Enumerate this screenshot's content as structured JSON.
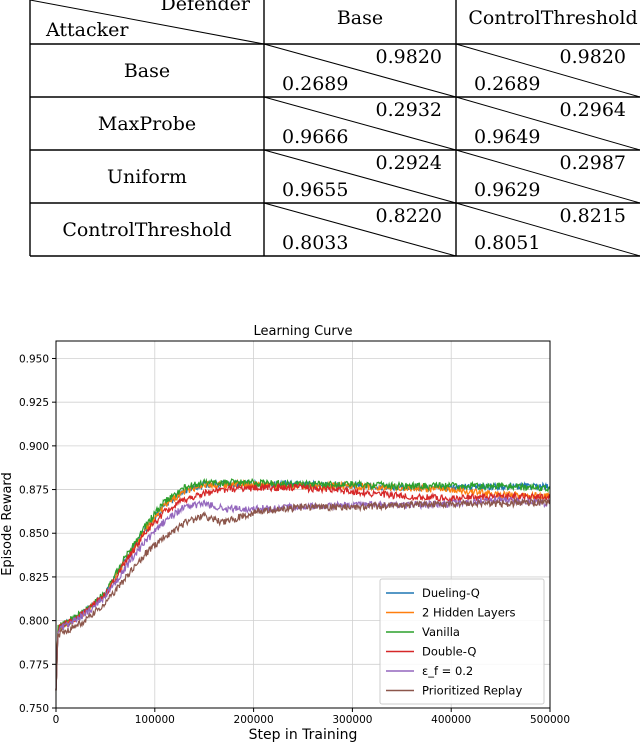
{
  "payoff_table": {
    "corner": {
      "defender": "Defender",
      "attacker": "Attacker"
    },
    "columns": [
      "Base",
      "ControlThreshold"
    ],
    "rows": [
      {
        "label": "Base",
        "cells": [
          {
            "upper": "0.9820",
            "lower": "0.2689"
          },
          {
            "upper": "0.9820",
            "lower": "0.2689"
          }
        ]
      },
      {
        "label": "MaxProbe",
        "cells": [
          {
            "upper": "0.2932",
            "lower": "0.9666"
          },
          {
            "upper": "0.2964",
            "lower": "0.9649"
          }
        ]
      },
      {
        "label": "Uniform",
        "cells": [
          {
            "upper": "0.2924",
            "lower": "0.9655"
          },
          {
            "upper": "0.2987",
            "lower": "0.9629"
          }
        ]
      },
      {
        "label": "ControlThreshold",
        "cells": [
          {
            "upper": "0.8220",
            "lower": "0.8033"
          },
          {
            "upper": "0.8215",
            "lower": "0.8051"
          }
        ]
      }
    ]
  },
  "chart_data": {
    "type": "line",
    "title": "Learning Curve",
    "xlabel": "Step in Training",
    "ylabel": "Episode Reward",
    "xlim": [
      0,
      500000
    ],
    "ylim": [
      0.75,
      0.96
    ],
    "xticks": [
      "0",
      "100000",
      "200000",
      "300000",
      "400000",
      "500000"
    ],
    "yticks": [
      "0.750",
      "0.775",
      "0.800",
      "0.825",
      "0.850",
      "0.875",
      "0.900",
      "0.925",
      "0.950"
    ],
    "grid": true,
    "legend_position": "lower-right",
    "series": [
      {
        "name": "Dueling-Q",
        "color": "#1f77b4",
        "x": [
          0,
          2000,
          10000,
          30000,
          50000,
          70000,
          90000,
          110000,
          130000,
          150000,
          170000,
          200000,
          250000,
          300000,
          350000,
          400000,
          450000,
          500000
        ],
        "y": [
          0.76,
          0.795,
          0.798,
          0.805,
          0.815,
          0.835,
          0.852,
          0.866,
          0.874,
          0.878,
          0.878,
          0.878,
          0.878,
          0.877,
          0.876,
          0.876,
          0.877,
          0.877
        ]
      },
      {
        "name": "2 Hidden Layers",
        "color": "#ff7f0e",
        "x": [
          0,
          2000,
          10000,
          30000,
          50000,
          70000,
          90000,
          110000,
          130000,
          150000,
          170000,
          200000,
          250000,
          300000,
          350000,
          400000,
          450000,
          500000
        ],
        "y": [
          0.76,
          0.795,
          0.798,
          0.805,
          0.815,
          0.834,
          0.852,
          0.866,
          0.874,
          0.878,
          0.878,
          0.878,
          0.877,
          0.877,
          0.876,
          0.875,
          0.872,
          0.871
        ]
      },
      {
        "name": "Vanilla",
        "color": "#2ca02c",
        "x": [
          0,
          2000,
          10000,
          30000,
          50000,
          70000,
          90000,
          110000,
          130000,
          150000,
          170000,
          200000,
          250000,
          300000,
          350000,
          400000,
          450000,
          500000
        ],
        "y": [
          0.76,
          0.796,
          0.799,
          0.806,
          0.816,
          0.836,
          0.854,
          0.868,
          0.876,
          0.879,
          0.879,
          0.879,
          0.878,
          0.878,
          0.877,
          0.877,
          0.877,
          0.876
        ]
      },
      {
        "name": "Double-Q",
        "color": "#d62728",
        "x": [
          0,
          2000,
          10000,
          30000,
          50000,
          70000,
          90000,
          110000,
          130000,
          150000,
          170000,
          200000,
          250000,
          300000,
          350000,
          400000,
          450000,
          500000
        ],
        "y": [
          0.76,
          0.795,
          0.798,
          0.805,
          0.815,
          0.833,
          0.85,
          0.862,
          0.869,
          0.873,
          0.875,
          0.876,
          0.876,
          0.874,
          0.871,
          0.87,
          0.871,
          0.871
        ]
      },
      {
        "name": "ε_f = 0.2",
        "color": "#9467bd",
        "x": [
          0,
          2000,
          10000,
          30000,
          50000,
          70000,
          90000,
          110000,
          130000,
          150000,
          170000,
          200000,
          250000,
          300000,
          350000,
          400000,
          450000,
          500000
        ],
        "y": [
          0.76,
          0.794,
          0.797,
          0.804,
          0.814,
          0.83,
          0.845,
          0.857,
          0.865,
          0.867,
          0.864,
          0.864,
          0.865,
          0.866,
          0.866,
          0.867,
          0.869,
          0.867
        ]
      },
      {
        "name": "Prioritized Replay",
        "color": "#8c564b",
        "x": [
          0,
          2000,
          10000,
          30000,
          50000,
          70000,
          90000,
          110000,
          130000,
          150000,
          170000,
          200000,
          250000,
          300000,
          350000,
          400000,
          450000,
          500000
        ],
        "y": [
          0.76,
          0.792,
          0.794,
          0.8,
          0.81,
          0.824,
          0.838,
          0.848,
          0.856,
          0.86,
          0.856,
          0.862,
          0.865,
          0.865,
          0.866,
          0.867,
          0.867,
          0.868
        ]
      }
    ]
  }
}
